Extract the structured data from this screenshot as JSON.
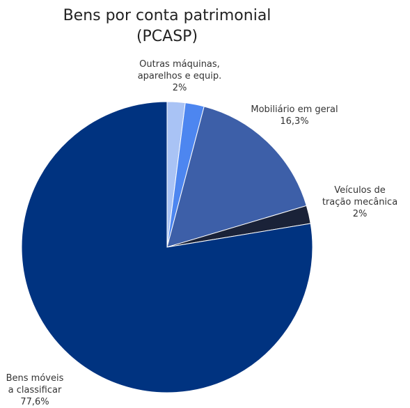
{
  "chart_data": {
    "type": "pie",
    "title": "Bens por conta patrimonial (PCASP)",
    "title_lines": [
      "Bens por conta patrimonial",
      "(PCASP)"
    ],
    "slices": [
      {
        "name": "Outras máquinas, aparelhos e equip.",
        "label_lines": [
          "Outras máquinas,",
          "aparelhos e equip.",
          "2%"
        ],
        "value": 2.0,
        "display": "2%",
        "color": "#a9c3f5"
      },
      {
        "name": "",
        "label_lines": [],
        "value": 2.1,
        "display": "",
        "color": "#4d86f0"
      },
      {
        "name": "Mobiliário em geral",
        "label_lines": [
          "Mobiliário em geral",
          "16,3%"
        ],
        "value": 16.3,
        "display": "16,3%",
        "color": "#3d5fa8"
      },
      {
        "name": "Veículos de tração mecânica",
        "label_lines": [
          "Veículos de",
          "tração mecânica",
          "2%"
        ],
        "value": 2.0,
        "display": "2%",
        "color": "#1a2238"
      },
      {
        "name": "Bens móveis a classificar",
        "label_lines": [
          "Bens móveis",
          "a classificar",
          "77,6%"
        ],
        "value": 77.6,
        "display": "77,6%",
        "color": "#003380"
      }
    ],
    "legend": "none"
  }
}
